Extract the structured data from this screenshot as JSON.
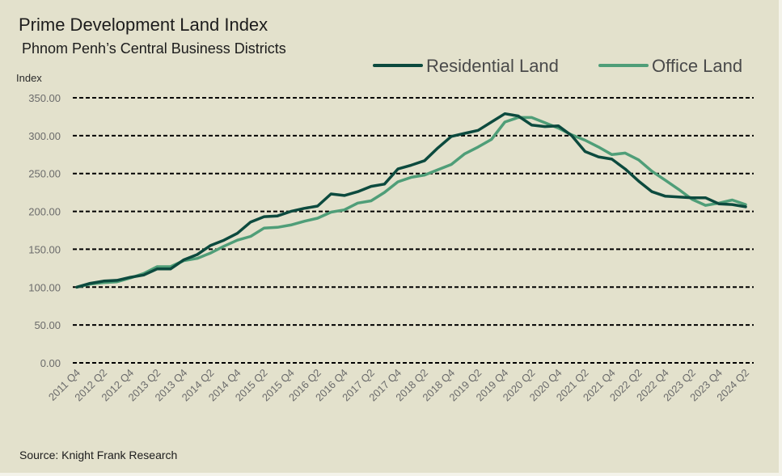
{
  "title": "Prime Development Land Index",
  "subtitle": "Phnom Penh’s Central Business Districts",
  "source": "Source: Knight Frank Research",
  "colors": {
    "residential": "#0c4a3e",
    "office": "#4f9e78",
    "grid": "#000000",
    "axis_text": "#6b6b6b"
  },
  "chart_data": {
    "type": "line",
    "ylabel": "Index",
    "ylim": [
      0,
      350
    ],
    "yticks": [
      "0.00",
      "50.00",
      "100.00",
      "150.00",
      "200.00",
      "250.00",
      "300.00",
      "350.00"
    ],
    "ytick_values": [
      0,
      50,
      100,
      150,
      200,
      250,
      300,
      350
    ],
    "grid": true,
    "legend_position": "top-right",
    "x_tick_labels": [
      "2011 Q4",
      "2012 Q2",
      "2012 Q4",
      "2013 Q2",
      "2013 Q4",
      "2014 Q2",
      "2014 Q4",
      "2015 Q2",
      "2015 Q4",
      "2016 Q2",
      "2016 Q4",
      "2017 Q2",
      "2017 Q4",
      "2018 Q2",
      "2018 Q4",
      "2019 Q2",
      "2019 Q4",
      "2020 Q2",
      "2020 Q4",
      "2021 Q2",
      "2021 Q4",
      "2022 Q2",
      "2022 Q4",
      "2023 Q2",
      "2023 Q4",
      "2024 Q2"
    ],
    "x": [
      "2011 Q4",
      "2012 Q1",
      "2012 Q2",
      "2012 Q3",
      "2012 Q4",
      "2013 Q1",
      "2013 Q2",
      "2013 Q3",
      "2013 Q4",
      "2014 Q1",
      "2014 Q2",
      "2014 Q3",
      "2014 Q4",
      "2015 Q1",
      "2015 Q2",
      "2015 Q3",
      "2015 Q4",
      "2016 Q1",
      "2016 Q2",
      "2016 Q3",
      "2016 Q4",
      "2017 Q1",
      "2017 Q2",
      "2017 Q3",
      "2017 Q4",
      "2018 Q1",
      "2018 Q2",
      "2018 Q3",
      "2018 Q4",
      "2019 Q1",
      "2019 Q2",
      "2019 Q3",
      "2019 Q4",
      "2020 Q1",
      "2020 Q2",
      "2020 Q3",
      "2020 Q4",
      "2021 Q1",
      "2021 Q2",
      "2021 Q3",
      "2021 Q4",
      "2022 Q1",
      "2022 Q2",
      "2022 Q3",
      "2022 Q4",
      "2023 Q1",
      "2023 Q2",
      "2023 Q3",
      "2023 Q4",
      "2024 Q1",
      "2024 Q2"
    ],
    "series": [
      {
        "name": "Residential Land",
        "values": [
          100,
          105,
          108,
          109,
          113,
          116,
          124,
          124,
          136,
          143,
          155,
          162,
          171,
          186,
          193,
          194,
          200,
          204,
          207,
          223,
          221,
          226,
          233,
          236,
          256,
          261,
          267,
          284,
          299,
          303,
          307,
          318,
          329,
          326,
          314,
          312,
          313,
          300,
          279,
          272,
          269,
          256,
          240,
          226,
          220,
          219,
          218,
          218,
          210,
          209,
          206
        ]
      },
      {
        "name": "Office Land",
        "values": [
          100,
          104,
          106,
          107,
          112,
          118,
          127,
          127,
          135,
          138,
          145,
          154,
          162,
          167,
          178,
          179,
          182,
          187,
          191,
          199,
          202,
          211,
          214,
          225,
          239,
          245,
          248,
          255,
          262,
          276,
          285,
          295,
          318,
          324,
          324,
          317,
          310,
          301,
          294,
          285,
          275,
          277,
          268,
          253,
          241,
          229,
          216,
          208,
          211,
          215,
          209
        ]
      }
    ]
  }
}
